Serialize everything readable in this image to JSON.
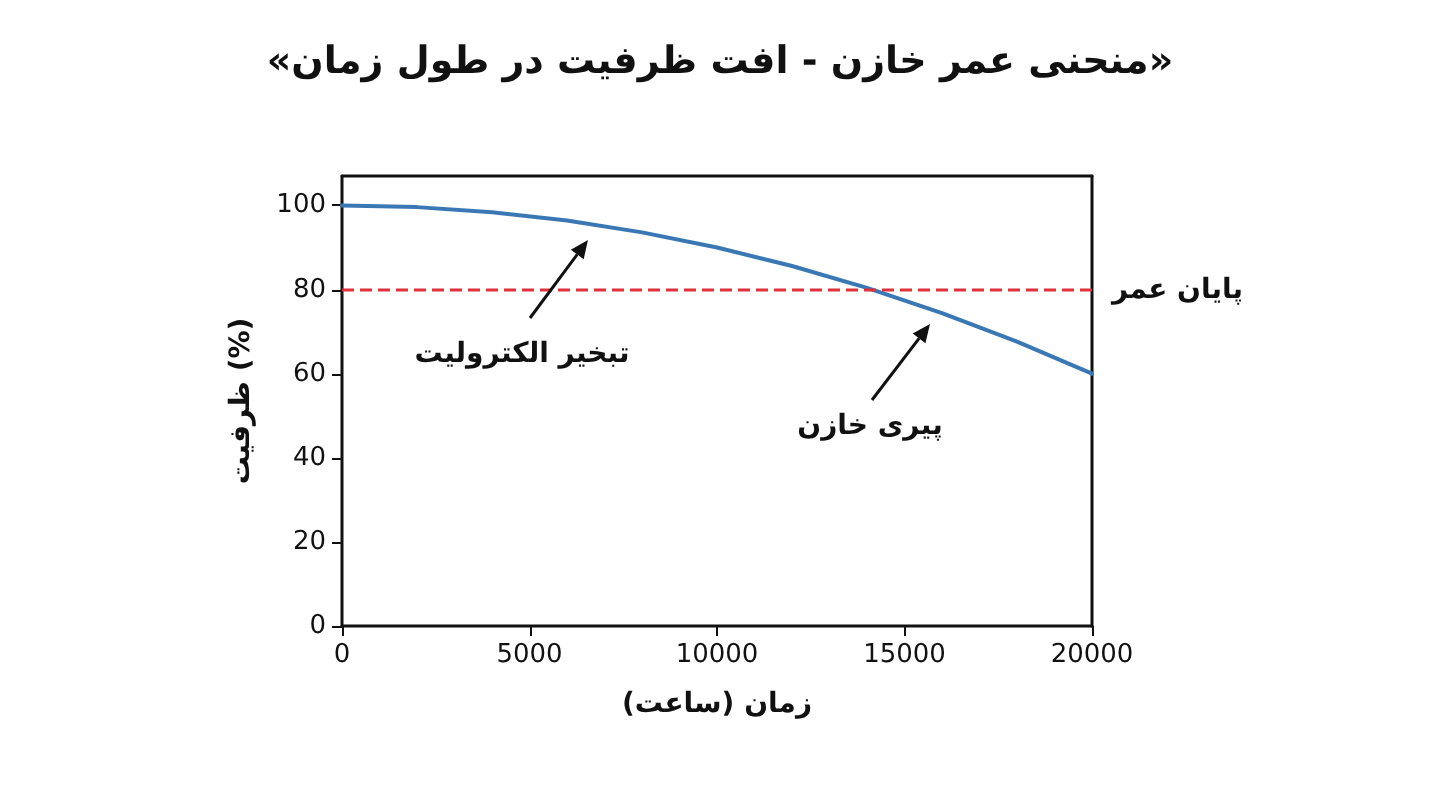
{
  "chart_data": {
    "type": "line",
    "title": "«منحنی عمر خازن - افت ظرفیت در طول زمان»",
    "xlabel": "زمان (ساعت)",
    "ylabel": "ظرفیت (%)",
    "x": [
      0,
      2000,
      4000,
      6000,
      8000,
      10000,
      12000,
      14000,
      16000,
      18000,
      20000
    ],
    "series": [
      {
        "color": "#3a78b5",
        "values": [
          100,
          99.6,
          98.4,
          96.4,
          93.6,
          90,
          85.6,
          80.4,
          74.4,
          67.6,
          60
        ]
      }
    ],
    "xlim": [
      0,
      20000
    ],
    "xticks": [
      0,
      5000,
      10000,
      15000,
      20000
    ],
    "ylim": [
      0,
      107
    ],
    "yticks": [
      0,
      20,
      40,
      60,
      80,
      100
    ],
    "ref_lines": [
      {
        "axis": "y",
        "value": 80,
        "label": "پایان عمر",
        "color": "#e0303a",
        "line_style": "dashed"
      }
    ],
    "annotations": [
      "تبخیر الکترولیت",
      "پیری خازن"
    ],
    "grid": false,
    "marker": "none",
    "line_style": "solid"
  }
}
